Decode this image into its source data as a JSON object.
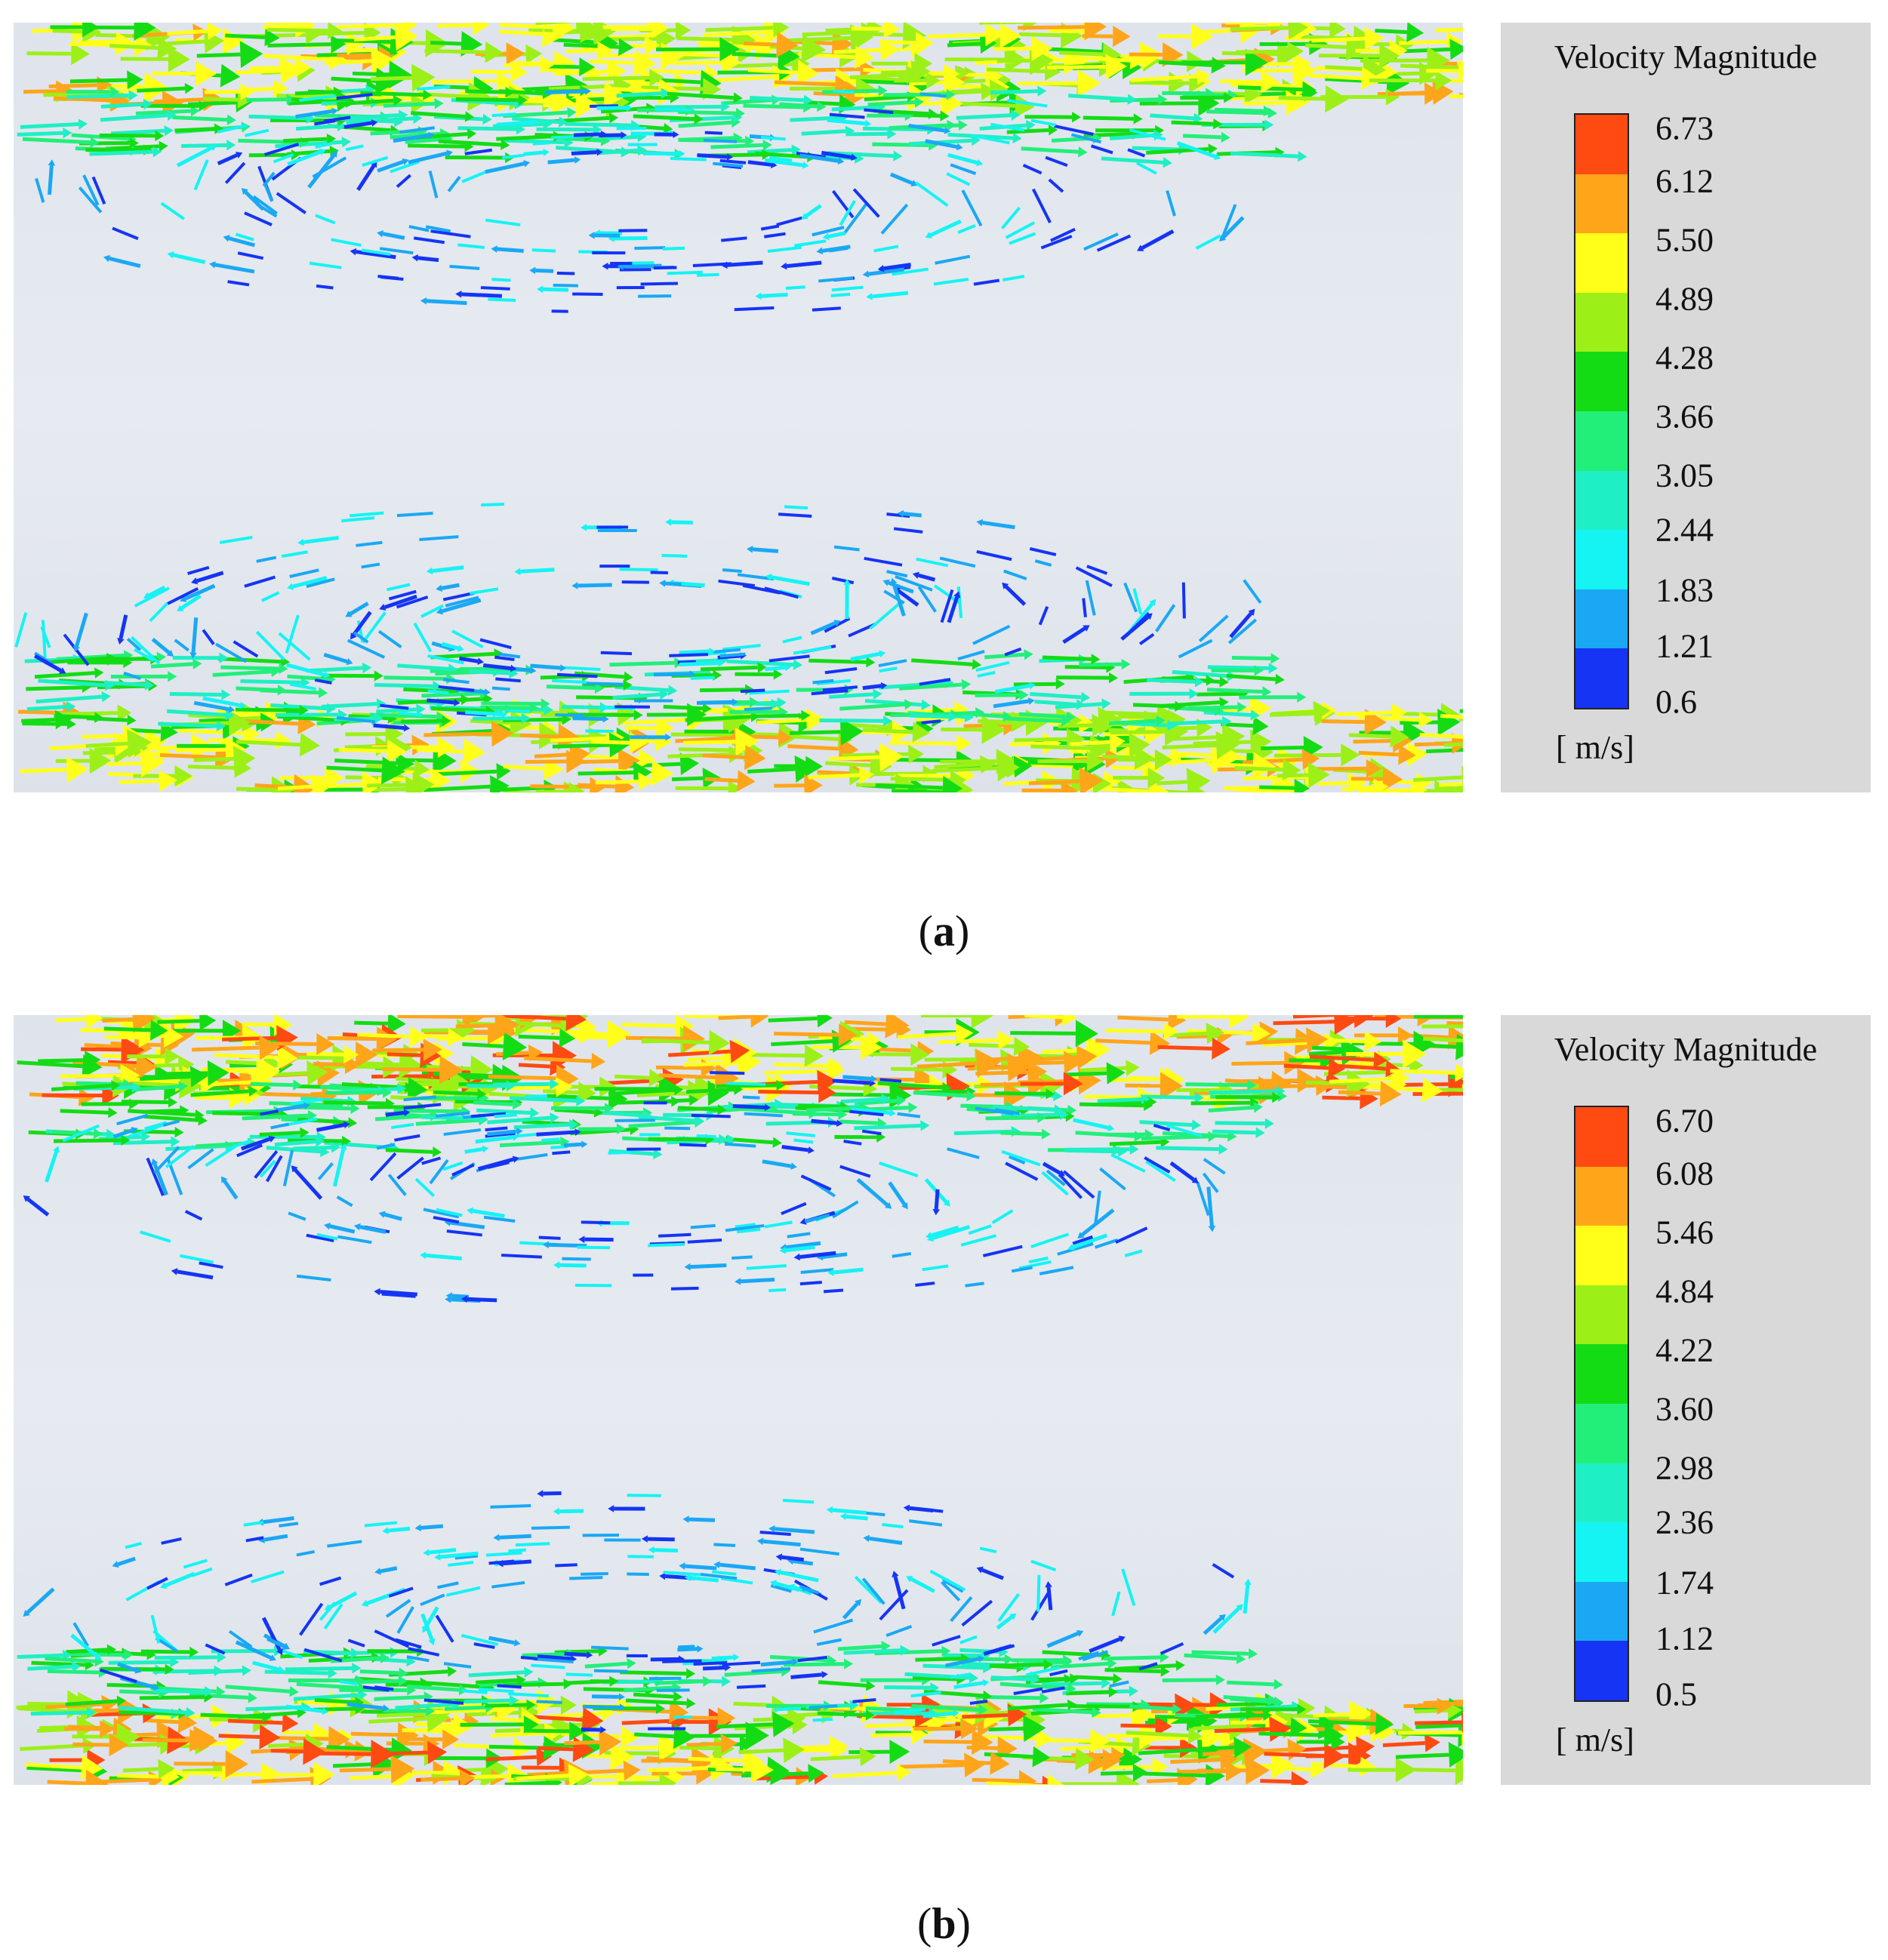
{
  "colorbar_colors": [
    "#ff4a12",
    "#ffa51a",
    "#ffff1a",
    "#9cf018",
    "#14dc14",
    "#22ef7a",
    "#1fefc4",
    "#16f3f3",
    "#1aa8f4",
    "#1534f4"
  ],
  "panels": [
    {
      "id": "a",
      "caption_letter": "a",
      "legend": {
        "title": "Velocity Magnitude",
        "units": "[ m/s]",
        "ticks": [
          "6.73",
          "6.12",
          "5.50",
          "4.89",
          "4.28",
          "3.66",
          "3.05",
          "2.44",
          "1.83",
          "1.21",
          "0.6"
        ]
      }
    },
    {
      "id": "b",
      "caption_letter": "b",
      "legend": {
        "title": "Velocity Magnitude",
        "units": "[ m/s]",
        "ticks": [
          "6.70",
          "6.08",
          "5.46",
          "4.84",
          "4.22",
          "3.60",
          "2.98",
          "2.36",
          "1.74",
          "1.12",
          "0.5"
        ]
      }
    }
  ]
}
